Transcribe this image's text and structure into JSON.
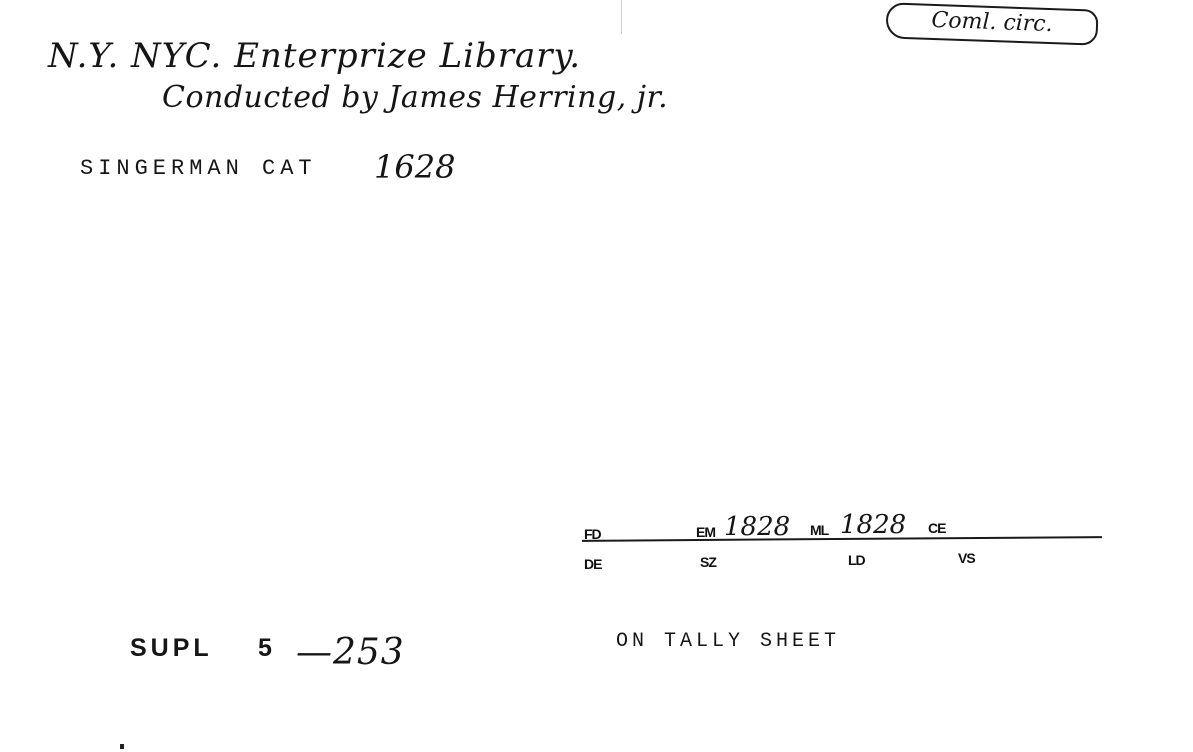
{
  "card": {
    "corner_note": "Coml. circ.",
    "heading_line1": "N.Y. NYC. Enterprize Library.",
    "heading_line2": "Conducted by James Herring, jr.",
    "catalog_stamp": "SINGERMAN CAT",
    "catalog_number": "1628",
    "tally_box": {
      "top_row": {
        "fd_label": "FD",
        "em_label": "EM",
        "em_value": "1828",
        "ml_label": "ML",
        "ml_value": "1828",
        "ce_label": "CE"
      },
      "bottom_row": {
        "de_label": "DE",
        "sz_label": "SZ",
        "ld_label": "LD",
        "vs_label": "VS"
      }
    },
    "tally_sheet_stamp": "ON TALLY SHEET",
    "supl_stamp": "SUPL",
    "supl_volume": "5",
    "supl_page": "—253"
  }
}
